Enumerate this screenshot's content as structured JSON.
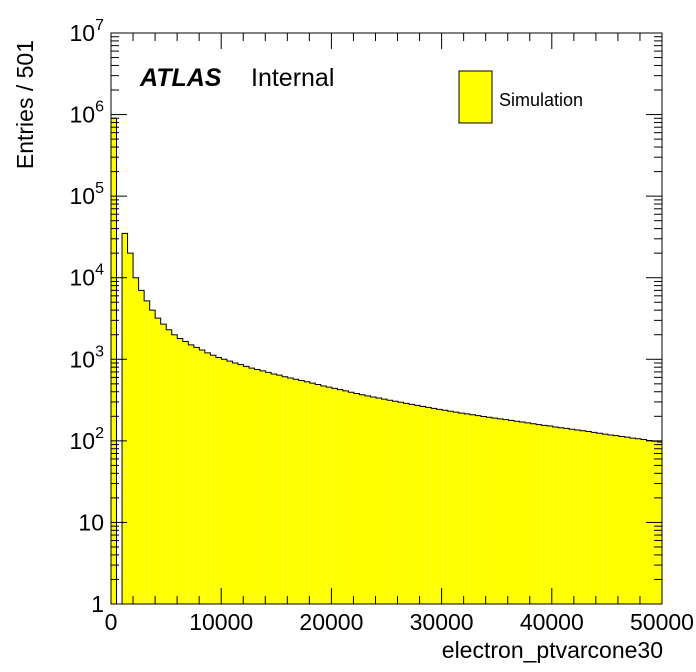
{
  "chart_data": {
    "type": "bar",
    "subtype": "histogram",
    "title": "",
    "xlabel": "electron_ptvarcone30",
    "ylabel": "Entries / 501",
    "xlim": [
      0,
      50000
    ],
    "ylim": [
      1,
      10000000
    ],
    "yscale": "log",
    "grid": false,
    "legend_position": "top-right",
    "fill_color": "#ffff00",
    "line_color": "#000000",
    "bin_width": 501,
    "x_ticks": [
      {
        "value": 0,
        "label": "0"
      },
      {
        "value": 10000,
        "label": "10000"
      },
      {
        "value": 20000,
        "label": "20000"
      },
      {
        "value": 30000,
        "label": "30000"
      },
      {
        "value": 40000,
        "label": "40000"
      },
      {
        "value": 50000,
        "label": "50000"
      }
    ],
    "y_ticks": [
      {
        "value": 1,
        "base": "1",
        "exp": ""
      },
      {
        "value": 10,
        "base": "10",
        "exp": ""
      },
      {
        "value": 100,
        "base": "10",
        "exp": "2"
      },
      {
        "value": 1000,
        "base": "10",
        "exp": "3"
      },
      {
        "value": 10000,
        "base": "10",
        "exp": "4"
      },
      {
        "value": 100000,
        "base": "10",
        "exp": "5"
      },
      {
        "value": 1000000,
        "base": "10",
        "exp": "6"
      },
      {
        "value": 10000000,
        "base": "10",
        "exp": "7"
      }
    ],
    "series": [
      {
        "name": "Simulation",
        "bin_edges_start": 0,
        "values": [
          900000,
          1,
          35000,
          20000,
          10000,
          7000,
          5200,
          4000,
          3200,
          2700,
          2300,
          2000,
          1800,
          1650,
          1500,
          1400,
          1300,
          1200,
          1120,
          1050,
          1000,
          950,
          900,
          860,
          820,
          780,
          750,
          720,
          690,
          660,
          640,
          610,
          590,
          570,
          550,
          530,
          510,
          490,
          470,
          455,
          440,
          425,
          410,
          395,
          380,
          368,
          356,
          345,
          335,
          325,
          315,
          306,
          297,
          288,
          280,
          272,
          264,
          257,
          250,
          243,
          237,
          231,
          225,
          219,
          214,
          209,
          204,
          199,
          195,
          190,
          186,
          182,
          178,
          174,
          170,
          166,
          162,
          158,
          155,
          152,
          148,
          145,
          142,
          139,
          136,
          133,
          130,
          127,
          124,
          121,
          118,
          116,
          113,
          111,
          108,
          106,
          104,
          101,
          99,
          97
        ]
      }
    ]
  },
  "labels": {
    "atlas": "ATLAS",
    "internal": "Internal"
  },
  "legend": {
    "items": [
      "Simulation"
    ]
  }
}
